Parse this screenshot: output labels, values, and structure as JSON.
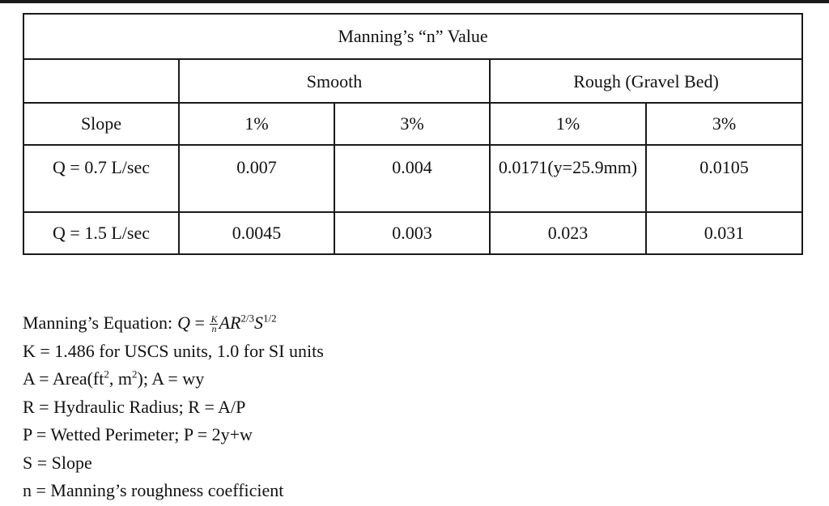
{
  "table": {
    "title": "Manning’s “n” Value",
    "groups": [
      "Smooth",
      "Rough (Gravel Bed)"
    ],
    "header": [
      "Slope",
      "1%",
      "3%",
      "1%",
      "3%"
    ],
    "rows": [
      [
        "Q = 0.7 L/sec",
        "0.007",
        "0.004",
        "0.0171(y=25.9mm)",
        "0.0105"
      ],
      [
        "Q = 1.5 L/sec",
        "0.0045",
        "0.003",
        "0.023",
        "0.031"
      ]
    ]
  },
  "notes": {
    "equation_label": "Manning’s Equation:",
    "equation": {
      "lhs": "Q",
      "equals": "=",
      "frac_num": "K",
      "frac_den": "n",
      "area": "A",
      "radius": "R",
      "radius_exp": "2/3",
      "slope": "S",
      "slope_exp": "1/2"
    },
    "k_line": "K = 1.486 for USCS units, 1.0 for SI units",
    "a_line": {
      "before": "A = Area(ft",
      "sup1": "2",
      "mid": ", m",
      "sup2": "2",
      "after": "); A = wy"
    },
    "r_line": "R = Hydraulic Radius; R = A/P",
    "p_line": "P = Wetted Perimeter; P = 2y+w",
    "s_line": "S = Slope",
    "n_line": "n = Manning’s roughness coefficient"
  }
}
